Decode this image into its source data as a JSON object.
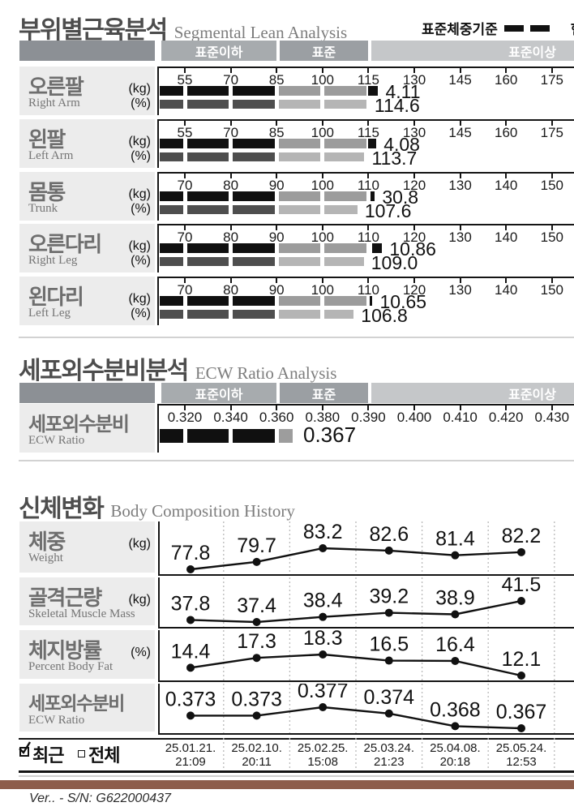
{
  "report": {
    "legend": {
      "standard_weight": "표준체중기준",
      "current_weight_partial": "현"
    },
    "footer": {
      "version_text": "Ver.. - S/N: G622000437"
    },
    "sections": {
      "segmental": {
        "title_ko": "부위별근육분석",
        "title_en": "Segmental Lean Analysis",
        "bands": [
          "표준이하",
          "표준",
          "표준이상"
        ],
        "rows": [
          {
            "name_ko": "오른팔",
            "name_en": "Right Arm",
            "unit1": "(kg)",
            "unit2": "(%)",
            "ticks": [
              "55",
              "70",
              "85",
              "100",
              "115",
              "130",
              "145",
              "160",
              "175"
            ],
            "tick_values": [
              55,
              70,
              85,
              100,
              115,
              130,
              145,
              160,
              175
            ],
            "kg_label": "4.11",
            "kg_bar_end": 118.2,
            "cap_w": 12,
            "pct_label": "114.6",
            "pct_bar_end": 114.6
          },
          {
            "name_ko": "왼팔",
            "name_en": "Left Arm",
            "unit1": "(kg)",
            "unit2": "(%)",
            "ticks": [
              "55",
              "70",
              "85",
              "100",
              "115",
              "130",
              "145",
              "160",
              "175"
            ],
            "tick_values": [
              55,
              70,
              85,
              100,
              115,
              130,
              145,
              160,
              175
            ],
            "kg_label": "4.08",
            "kg_bar_end": 117.6,
            "cap_w": 10,
            "pct_label": "113.7",
            "pct_bar_end": 113.7
          },
          {
            "name_ko": "몸통",
            "name_en": "Trunk",
            "unit1": "(kg)",
            "unit2": "(%)",
            "ticks": [
              "70",
              "80",
              "90",
              "100",
              "110",
              "120",
              "130",
              "140",
              "150"
            ],
            "tick_values": [
              70,
              80,
              90,
              100,
              110,
              120,
              130,
              140,
              150
            ],
            "kg_label": "30.8",
            "kg_bar_end": 111.4,
            "cap_w": 5,
            "pct_label": "107.6",
            "pct_bar_end": 107.6
          },
          {
            "name_ko": "오른다리",
            "name_en": "Right Leg",
            "unit1": "(kg)",
            "unit2": "(%)",
            "ticks": [
              "70",
              "80",
              "90",
              "100",
              "110",
              "120",
              "130",
              "140",
              "150"
            ],
            "tick_values": [
              70,
              80,
              90,
              100,
              110,
              120,
              130,
              140,
              150
            ],
            "kg_label": "10.86",
            "kg_bar_end": 113.0,
            "cap_w": 12,
            "pct_label": "109.0",
            "pct_bar_end": 109.0
          },
          {
            "name_ko": "왼다리",
            "name_en": "Left Leg",
            "unit1": "(kg)",
            "unit2": "(%)",
            "ticks": [
              "70",
              "80",
              "90",
              "100",
              "110",
              "120",
              "130",
              "140",
              "150"
            ],
            "tick_values": [
              70,
              80,
              90,
              100,
              110,
              120,
              130,
              140,
              150
            ],
            "kg_label": "10.65",
            "kg_bar_end": 110.9,
            "cap_w": 3,
            "pct_label": "106.8",
            "pct_bar_end": 106.8
          }
        ]
      },
      "ecw": {
        "title_ko": "세포외수분비분석",
        "title_en": "ECW Ratio Analysis",
        "bands": [
          "표준이하",
          "표준",
          "표준이상"
        ],
        "row": {
          "name_ko": "세포외수분비",
          "name_en": "ECW Ratio",
          "ticks": [
            "0.320",
            "0.340",
            "0.360",
            "0.380",
            "0.390",
            "0.400",
            "0.410",
            "0.420",
            "0.430"
          ],
          "tick_values": [
            0.32,
            0.34,
            0.36,
            0.38,
            0.39,
            0.4,
            0.41,
            0.42,
            0.43
          ],
          "value_label": "0.367",
          "bar_end": 0.367
        }
      },
      "history": {
        "title_ko": "신체변화",
        "title_en": "Body Composition History",
        "controls": {
          "recent": "최근",
          "all": "전체",
          "recent_checked": true,
          "all_checked": false
        },
        "dates": [
          {
            "date": "25.01.21.",
            "time": "21:09"
          },
          {
            "date": "25.02.10.",
            "time": "20:11"
          },
          {
            "date": "25.02.25.",
            "time": "15:08"
          },
          {
            "date": "25.03.24.",
            "time": "21:23"
          },
          {
            "date": "25.04.08.",
            "time": "20:18"
          },
          {
            "date": "25.05.24.",
            "time": "12:53"
          }
        ],
        "rows": [
          {
            "name_ko": "체중",
            "name_en": "Weight",
            "unit": "(kg)",
            "labels": [
              "77.8",
              "79.7",
              "83.2",
              "82.6",
              "81.4",
              "82.2"
            ],
            "values": [
              77.8,
              79.7,
              83.2,
              82.6,
              81.4,
              82.2
            ]
          },
          {
            "name_ko": "골격근량",
            "name_en": "Skeletal Muscle Mass",
            "unit": "(kg)",
            "labels": [
              "37.8",
              "37.4",
              "38.4",
              "39.2",
              "38.9",
              "41.5"
            ],
            "values": [
              37.8,
              37.4,
              38.4,
              39.2,
              38.9,
              41.5
            ]
          },
          {
            "name_ko": "체지방률",
            "name_en": "Percent Body Fat",
            "unit": "(%)",
            "labels": [
              "14.4",
              "17.3",
              "18.3",
              "16.5",
              "16.4",
              "12.1"
            ],
            "values": [
              14.4,
              17.3,
              18.3,
              16.5,
              16.4,
              12.1
            ]
          },
          {
            "name_ko": "세포외수분비",
            "name_en": "ECW Ratio",
            "unit": "",
            "labels": [
              "0.373",
              "0.373",
              "0.377",
              "0.374",
              "0.368",
              "0.367"
            ],
            "values": [
              0.373,
              0.373,
              0.377,
              0.374,
              0.368,
              0.367
            ]
          }
        ]
      }
    }
  },
  "chart_data": [
    {
      "type": "bar",
      "title": "부위별근육분석 Segmental Lean Analysis",
      "categories": [
        "오른팔 Right Arm",
        "왼팔 Left Arm",
        "몸통 Trunk",
        "오른다리 Right Leg",
        "왼다리 Left Leg"
      ],
      "series": [
        {
          "name": "kg",
          "values": [
            4.11,
            4.08,
            30.8,
            10.86,
            10.65
          ]
        },
        {
          "name": "percent_of_standard",
          "values": [
            114.6,
            113.7,
            107.6,
            109.0,
            106.8
          ]
        }
      ],
      "axis_ranges": {
        "arms": [
          55,
          175
        ],
        "trunk_and_legs": [
          70,
          150
        ]
      },
      "bands": [
        "표준이하",
        "표준",
        "표준이상"
      ]
    },
    {
      "type": "bar",
      "title": "세포외수분비분석 ECW Ratio Analysis",
      "categories": [
        "세포외수분비 ECW Ratio"
      ],
      "values": [
        0.367
      ],
      "ticks": [
        0.32,
        0.34,
        0.36,
        0.38,
        0.39,
        0.4,
        0.41,
        0.42,
        0.43
      ]
    },
    {
      "type": "line",
      "title": "신체변화 Body Composition History",
      "x": [
        "25.01.21. 21:09",
        "25.02.10. 20:11",
        "25.02.25. 15:08",
        "25.03.24. 21:23",
        "25.04.08. 20:18",
        "25.05.24. 12:53"
      ],
      "series": [
        {
          "name": "체중 Weight (kg)",
          "values": [
            77.8,
            79.7,
            83.2,
            82.6,
            81.4,
            82.2
          ]
        },
        {
          "name": "골격근량 Skeletal Muscle Mass (kg)",
          "values": [
            37.8,
            37.4,
            38.4,
            39.2,
            38.9,
            41.5
          ]
        },
        {
          "name": "체지방률 Percent Body Fat (%)",
          "values": [
            14.4,
            17.3,
            18.3,
            16.5,
            16.4,
            12.1
          ]
        },
        {
          "name": "세포외수분비 ECW Ratio",
          "values": [
            0.373,
            0.373,
            0.377,
            0.374,
            0.368,
            0.367
          ]
        }
      ]
    }
  ]
}
